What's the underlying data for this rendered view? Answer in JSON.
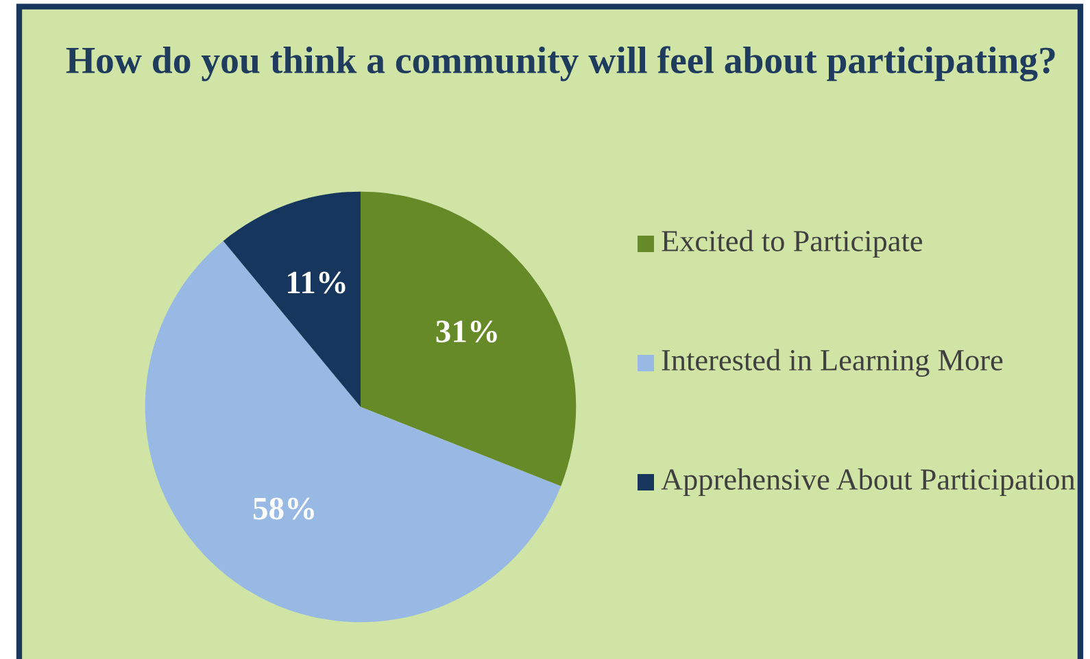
{
  "chart_data": {
    "type": "pie",
    "title": "How do you think a community will feel about participating?",
    "categories": [
      "Excited to Participate",
      "Interested in Learning More",
      "Apprehensive About Participation"
    ],
    "values": [
      31,
      58,
      11
    ],
    "value_labels": [
      "31%",
      "58%",
      "11%"
    ],
    "colors": [
      "#678a29",
      "#97b9e3",
      "#17365d"
    ],
    "legend": "right"
  }
}
